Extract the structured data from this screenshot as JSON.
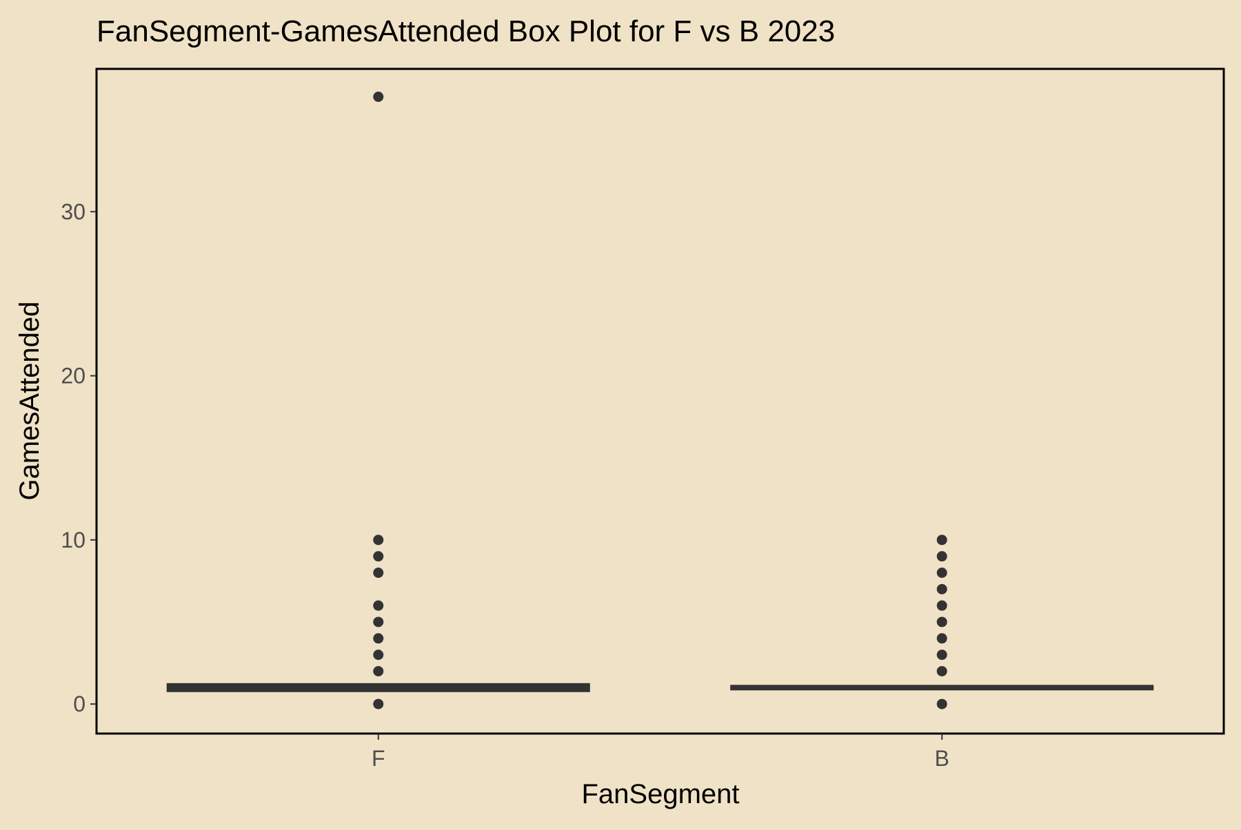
{
  "chart_data": {
    "type": "box",
    "title": "FanSegment-GamesAttended Box Plot for F vs B 2023",
    "xlabel": "FanSegment",
    "ylabel": "GamesAttended",
    "categories": [
      "F",
      "B"
    ],
    "ylim": [
      -1.8,
      38.7
    ],
    "yticks": [
      0,
      10,
      20,
      30
    ],
    "grid": false,
    "legend": "none",
    "series": [
      {
        "category": "F",
        "q1": 1,
        "median": 1,
        "q3": 1,
        "whisker_low": 1,
        "whisker_high": 1,
        "outliers": [
          0,
          2,
          3,
          4,
          5,
          6,
          8,
          9,
          10,
          37
        ]
      },
      {
        "category": "B",
        "q1": 1,
        "median": 1,
        "q3": 1,
        "whisker_low": 1,
        "whisker_high": 1,
        "outliers": [
          0,
          2,
          3,
          4,
          5,
          6,
          7,
          8,
          9,
          10
        ]
      }
    ],
    "colors": {
      "background": "#F0E2C6",
      "panel_border": "#000000",
      "box": "#333333",
      "outlier": "#333333",
      "tick_text": "#4D4D4D"
    }
  }
}
